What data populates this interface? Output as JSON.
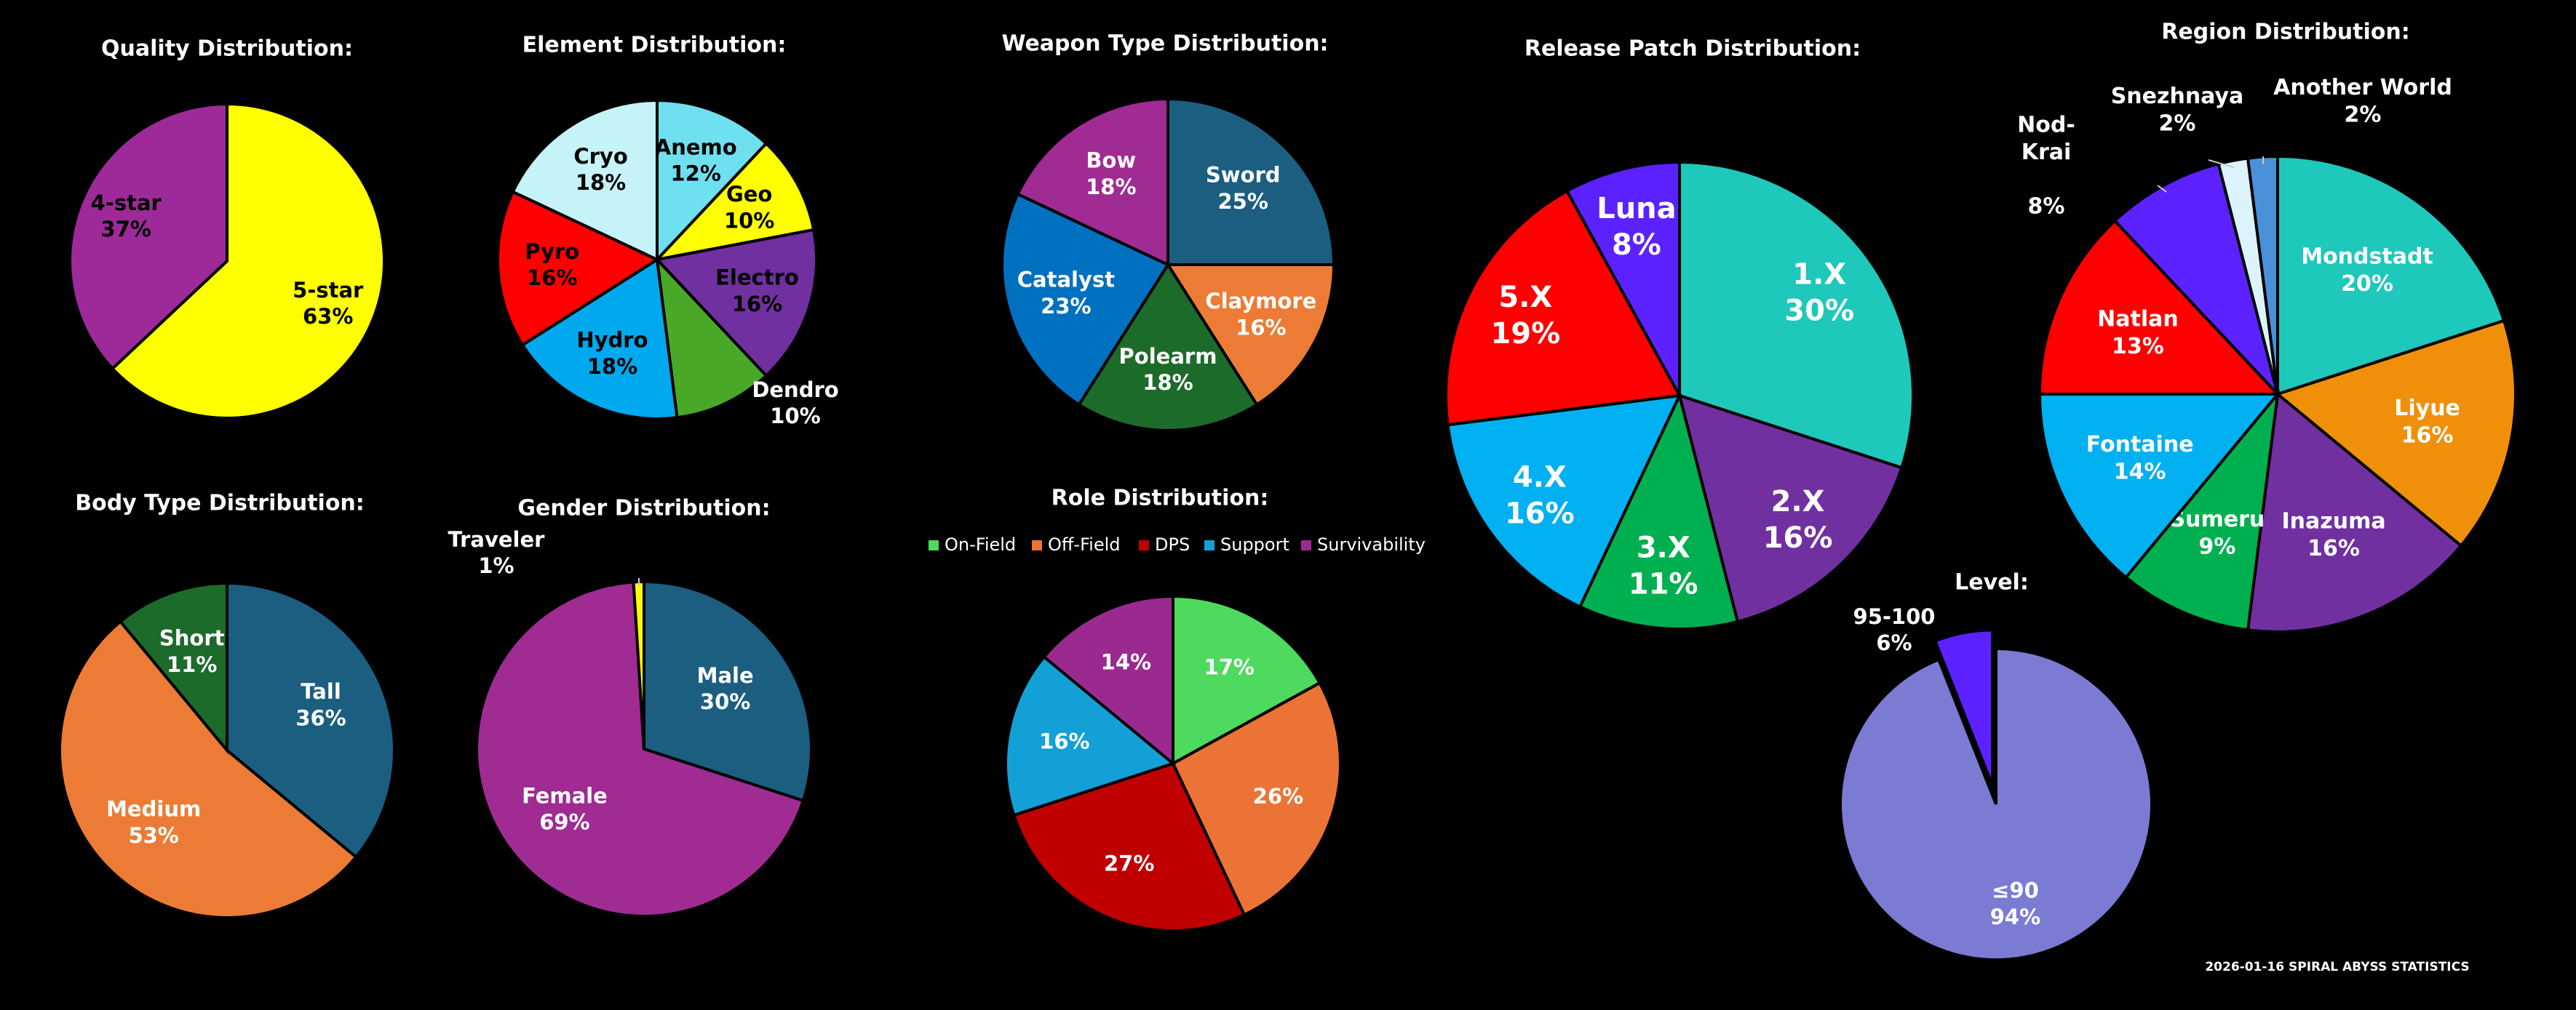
{
  "chart_data": [
    {
      "type": "pie",
      "title": "Quality Distribution:",
      "categories": [
        "5-star",
        "4-star"
      ],
      "values": [
        63,
        37
      ],
      "value_labels": [
        "63%",
        "37%"
      ],
      "colors": [
        "#ffff00",
        "#9e2a9a"
      ]
    },
    {
      "type": "pie",
      "title": "Element Distribution:",
      "categories": [
        "Anemo",
        "Geo",
        "Electro",
        "Dendro",
        "Hydro",
        "Pyro",
        "Cryo"
      ],
      "values": [
        12,
        10,
        16,
        10,
        18,
        16,
        18
      ],
      "value_labels": [
        "12%",
        "10%",
        "16%",
        "10%",
        "18%",
        "16%",
        "18%"
      ],
      "colors": [
        "#6fe0ef",
        "#ffff00",
        "#7030a0",
        "#4aa829",
        "#00a8ee",
        "#ff0000",
        "#c5f3f8"
      ]
    },
    {
      "type": "pie",
      "title": "Weapon Type Distribution:",
      "categories": [
        "Sword",
        "Claymore",
        "Polearm",
        "Catalyst",
        "Bow"
      ],
      "values": [
        25,
        16,
        18,
        23,
        18
      ],
      "value_labels": [
        "25%",
        "16%",
        "18%",
        "23%",
        "18%"
      ],
      "colors": [
        "#1b5e80",
        "#ec7c35",
        "#1d6b2a",
        "#0070c0",
        "#a02b93"
      ]
    },
    {
      "type": "pie",
      "title": "Release Patch Distribution:",
      "categories": [
        "1.X",
        "2.X",
        "3.X",
        "4.X",
        "5.X",
        "Luna"
      ],
      "values": [
        30,
        16,
        11,
        16,
        19,
        8
      ],
      "value_labels": [
        "30%",
        "16%",
        "11%",
        "16%",
        "19%",
        "8%"
      ],
      "colors": [
        "#1ec8bb",
        "#7030a0",
        "#00b050",
        "#00b0f0",
        "#ff0000",
        "#5b21ff"
      ]
    },
    {
      "type": "pie",
      "title": "Region Distribution:",
      "categories": [
        "Mondstadt",
        "Liyue",
        "Inazuma",
        "Sumeru",
        "Fontaine",
        "Natlan",
        "Nod-Krai",
        "Snezhnaya",
        "Another World"
      ],
      "values": [
        20,
        16,
        16,
        9,
        14,
        13,
        8,
        2,
        2
      ],
      "value_labels": [
        "20%",
        "16%",
        "16%",
        "9%",
        "14%",
        "13%",
        "8%",
        "2%",
        "2%"
      ],
      "colors": [
        "#1ec8bb",
        "#f0900a",
        "#7030a0",
        "#00b050",
        "#00b0f0",
        "#ff0000",
        "#5b21ff",
        "#ddf3fb",
        "#4a90d9"
      ]
    },
    {
      "type": "pie",
      "title": "Body Type Distribution:",
      "categories": [
        "Tall",
        "Medium",
        "Short"
      ],
      "values": [
        36,
        53,
        11
      ],
      "value_labels": [
        "36%",
        "53%",
        "11%"
      ],
      "colors": [
        "#1b5e80",
        "#ec7c35",
        "#1d6b2a"
      ]
    },
    {
      "type": "pie",
      "title": "Gender Distribution:",
      "categories": [
        "Male",
        "Female",
        "Traveler"
      ],
      "values": [
        30,
        69,
        1
      ],
      "value_labels": [
        "30%",
        "69%",
        "1%"
      ],
      "colors": [
        "#1b5e80",
        "#a02b93",
        "#ffff00"
      ]
    },
    {
      "type": "pie",
      "title": "Role Distribution:",
      "categories": [
        "On-Field",
        "Off-Field",
        "DPS",
        "Support",
        "Survivability"
      ],
      "values": [
        17,
        26,
        27,
        16,
        14
      ],
      "value_labels": [
        "17%",
        "26%",
        "27%",
        "16%",
        "14%"
      ],
      "colors": [
        "#4ed95f",
        "#ec7336",
        "#c00000",
        "#13a0d6",
        "#9b2a90"
      ],
      "legend": true
    },
    {
      "type": "pie",
      "title": "Level:",
      "categories": [
        "≤90",
        "95-100"
      ],
      "values": [
        94,
        6
      ],
      "value_labels": [
        "94%",
        "6%"
      ],
      "colors": [
        "#7b7bd4",
        "#5b21ff"
      ]
    }
  ],
  "footer": "2026-01-16 SPIRAL ABYSS STATISTICS"
}
